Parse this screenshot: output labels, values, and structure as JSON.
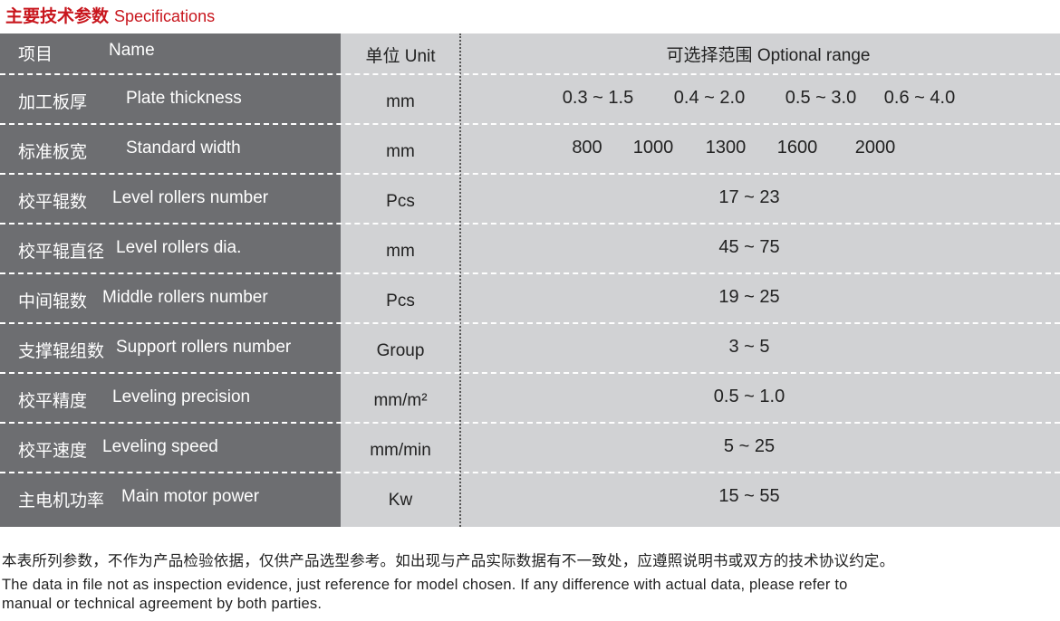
{
  "title": {
    "cn": "主要技术参数",
    "en": "Specifications"
  },
  "colors": {
    "title": "#c8161d",
    "name_column": "#6d6e71",
    "table_bg": "#d1d2d4"
  },
  "header": {
    "name_cn": "项目",
    "name_en": "Name",
    "unit": "单位 Unit",
    "range": "可选择范围 Optional range"
  },
  "rows": [
    {
      "cn": "加工板厚",
      "en": "Plate thickness",
      "unit": "mm",
      "range": [
        "0.3 ~ 1.5",
        "0.4 ~ 2.0",
        "0.5 ~ 3.0",
        "0.6 ~ 4.0"
      ]
    },
    {
      "cn": "标准板宽",
      "en": "Standard width",
      "unit": "mm",
      "range": [
        "800",
        "1000",
        "1300",
        "1600",
        "2000"
      ]
    },
    {
      "cn": "校平辊数",
      "en": "Level rollers number",
      "unit": "Pcs",
      "range": [
        "17 ~ 23"
      ]
    },
    {
      "cn": "校平辊直径",
      "en": "Level rollers dia.",
      "unit": "mm",
      "range": [
        "45 ~ 75"
      ]
    },
    {
      "cn": "中间辊数",
      "en": "Middle rollers number",
      "unit": "Pcs",
      "range": [
        "19 ~ 25"
      ]
    },
    {
      "cn": "支撑辊组数",
      "en": "Support rollers number",
      "unit": "Group",
      "range": [
        "3 ~ 5"
      ]
    },
    {
      "cn": "校平精度",
      "en": "Leveling  precision",
      "unit": "mm/m²",
      "range": [
        "0.5 ~ 1.0"
      ]
    },
    {
      "cn": "校平速度",
      "en": "Leveling speed",
      "unit": "mm/min",
      "range": [
        "5 ~ 25"
      ]
    },
    {
      "cn": "主电机功率",
      "en": "Main  motor power",
      "unit": "Kw",
      "range": [
        "15 ~ 55"
      ]
    }
  ],
  "notes": {
    "cn": "本表所列参数，不作为产品检验依据，仅供产品选型参考。如出现与产品实际数据有不一致处，应遵照说明书或双方的技术协议约定。",
    "en1": "The data in file not as inspection evidence, just reference for model chosen. If any difference with actual data, please refer to",
    "en2": " manual or technical agreement by both parties."
  }
}
